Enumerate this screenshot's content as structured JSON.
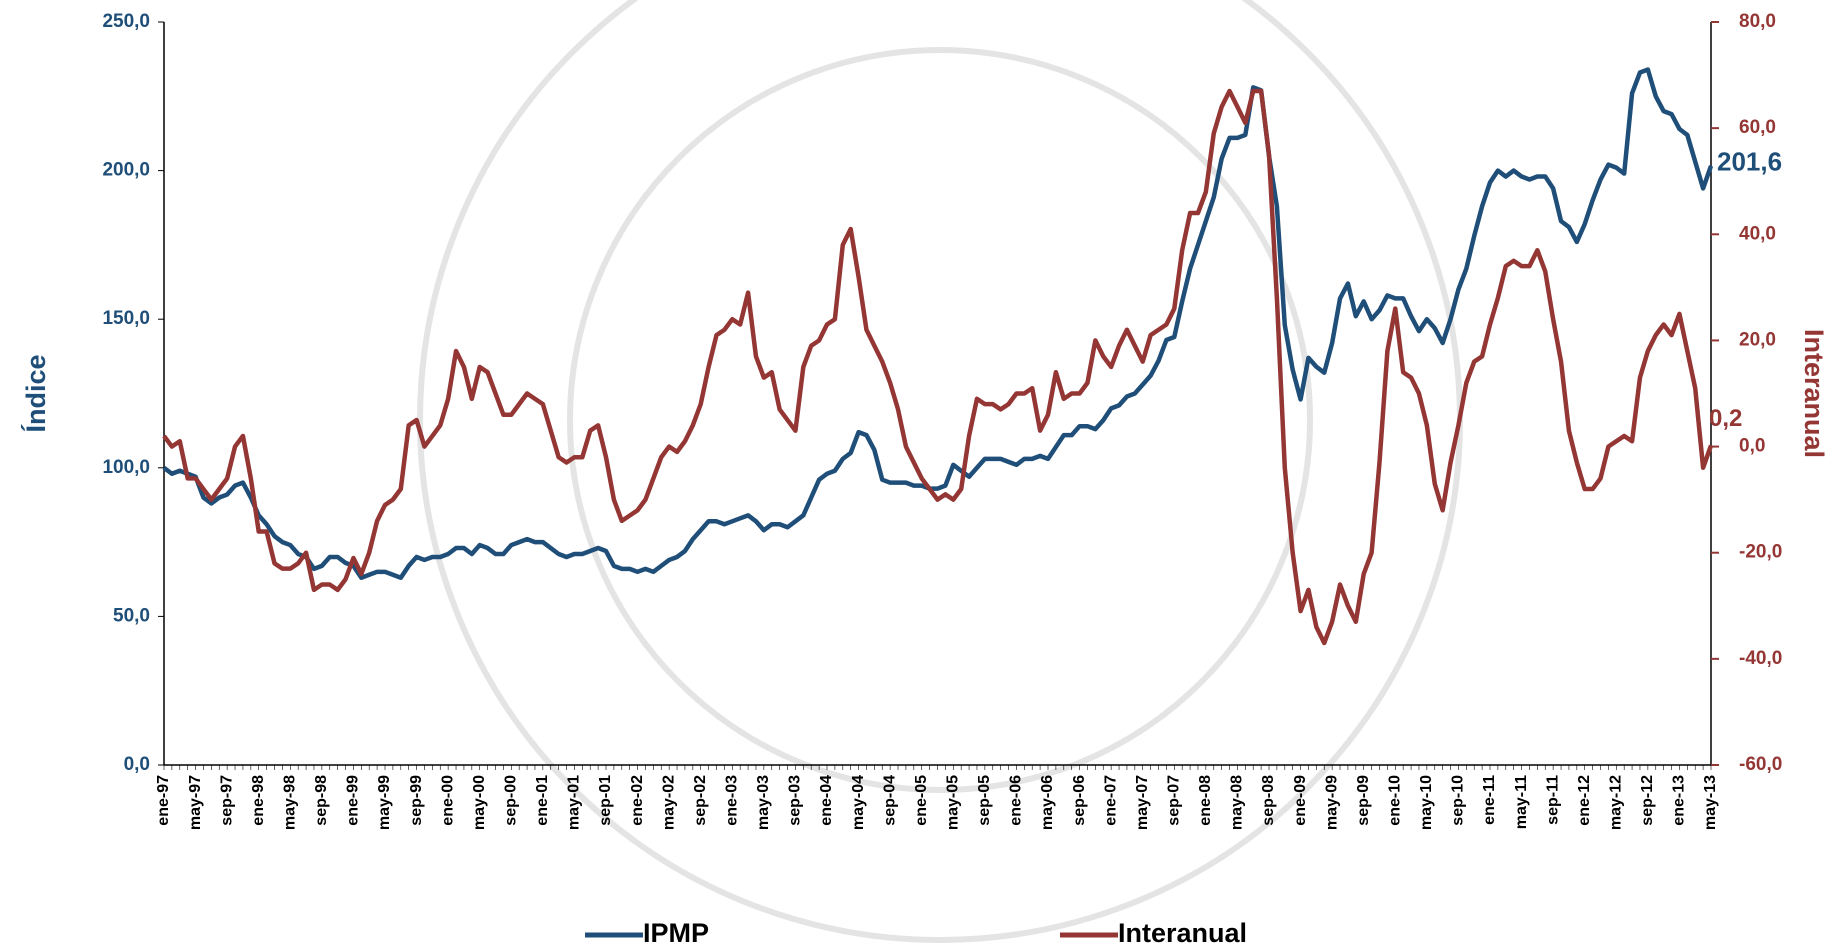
{
  "chart_data": {
    "type": "line",
    "categories": [
      "ene-97",
      null,
      null,
      null,
      "may-97",
      null,
      null,
      null,
      "sep-97",
      null,
      null,
      null,
      "ene-98",
      null,
      null,
      null,
      "may-98",
      null,
      null,
      null,
      "sep-98",
      null,
      null,
      null,
      "ene-99",
      null,
      null,
      null,
      "may-99",
      null,
      null,
      null,
      "sep-99",
      null,
      null,
      null,
      "ene-00",
      null,
      null,
      null,
      "may-00",
      null,
      null,
      null,
      "sep-00",
      null,
      null,
      null,
      "ene-01",
      null,
      null,
      null,
      "may-01",
      null,
      null,
      null,
      "sep-01",
      null,
      null,
      null,
      "ene-02",
      null,
      null,
      null,
      "may-02",
      null,
      null,
      null,
      "sep-02",
      null,
      null,
      null,
      "ene-03",
      null,
      null,
      null,
      "may-03",
      null,
      null,
      null,
      "sep-03",
      null,
      null,
      null,
      "ene-04",
      null,
      null,
      null,
      "may-04",
      null,
      null,
      null,
      "sep-04",
      null,
      null,
      null,
      "ene-05",
      null,
      null,
      null,
      "may-05",
      null,
      null,
      null,
      "sep-05",
      null,
      null,
      null,
      "ene-06",
      null,
      null,
      null,
      "may-06",
      null,
      null,
      null,
      "sep-06",
      null,
      null,
      null,
      "ene-07",
      null,
      null,
      null,
      "may-07",
      null,
      null,
      null,
      "sep-07",
      null,
      null,
      null,
      "ene-08",
      null,
      null,
      null,
      "may-08",
      null,
      null,
      null,
      "sep-08",
      null,
      null,
      null,
      "ene-09",
      null,
      null,
      null,
      "may-09",
      null,
      null,
      null,
      "sep-09",
      null,
      null,
      null,
      "ene-10",
      null,
      null,
      null,
      "may-10",
      null,
      null,
      null,
      "sep-10",
      null,
      null,
      null,
      "ene-11",
      null,
      null,
      null,
      "may-11",
      null,
      null,
      null,
      "sep-11",
      null,
      null,
      null,
      "ene-12",
      null,
      null,
      null,
      "may-12",
      null,
      null,
      null,
      "sep-12",
      null,
      null,
      null,
      "ene-13",
      null,
      null,
      null,
      "may-13"
    ],
    "series": [
      {
        "name": "IPMP",
        "color": "#1f4e79",
        "axis": "y",
        "values": [
          100,
          98,
          99,
          98,
          97,
          90,
          88,
          90,
          91,
          94,
          95,
          90,
          84,
          81,
          77,
          75,
          74,
          71,
          70,
          66,
          67,
          70,
          70,
          68,
          67,
          63,
          64,
          65,
          65,
          64,
          63,
          67,
          70,
          69,
          70,
          70,
          71,
          73,
          73,
          71,
          74,
          73,
          71,
          71,
          74,
          75,
          76,
          75,
          75,
          73,
          71,
          70,
          71,
          71,
          72,
          73,
          72,
          67,
          66,
          66,
          65,
          66,
          65,
          67,
          69,
          70,
          72,
          76,
          79,
          82,
          82,
          81,
          82,
          83,
          84,
          82,
          79,
          81,
          81,
          80,
          82,
          84,
          90,
          96,
          98,
          99,
          103,
          105,
          112,
          111,
          106,
          96,
          95,
          95,
          95,
          94,
          94,
          93,
          93,
          94,
          101,
          99,
          97,
          100,
          103,
          103,
          103,
          102,
          101,
          103,
          103,
          104,
          103,
          107,
          111,
          111,
          114,
          114,
          113,
          116,
          120,
          121,
          124,
          125,
          128,
          131,
          136,
          143,
          144,
          156,
          167,
          175,
          183,
          191,
          204,
          211,
          211,
          212,
          228,
          227,
          205,
          188,
          148,
          133,
          123,
          137,
          134,
          132,
          142,
          157,
          162,
          151,
          156,
          150,
          153,
          158,
          157,
          157,
          151,
          146,
          150,
          147,
          142,
          150,
          160,
          167,
          178,
          188,
          196,
          200,
          198,
          200,
          198,
          197,
          198,
          198,
          194,
          183,
          181,
          176,
          182,
          190,
          197,
          202,
          201,
          199,
          226,
          233,
          234,
          225,
          220,
          219,
          214,
          212,
          203,
          194,
          201.6
        ],
        "value_labels": [
          null,
          null,
          null,
          null,
          null,
          null,
          null,
          null,
          null,
          null,
          null,
          null,
          null,
          null,
          null,
          null,
          null,
          null,
          null,
          null,
          null,
          null,
          null,
          null,
          null,
          null,
          null,
          null,
          null,
          null,
          null,
          null,
          null,
          null,
          null,
          null,
          null,
          null,
          null,
          null,
          null,
          null,
          null,
          null,
          null,
          null,
          null,
          null,
          null,
          null,
          null,
          null,
          null,
          null,
          null,
          null,
          null,
          null,
          null,
          null,
          null,
          null,
          null,
          null,
          null,
          null,
          null,
          null,
          null,
          null,
          null,
          null,
          null,
          null,
          null,
          null,
          null,
          null,
          null,
          null,
          null,
          null,
          null,
          null,
          null,
          null,
          null,
          null,
          null,
          null,
          null,
          null,
          null,
          null,
          null,
          null,
          null,
          null,
          null,
          null,
          null,
          null,
          null,
          null,
          null,
          null,
          null,
          null,
          null,
          null,
          null,
          null,
          null,
          null,
          null,
          null,
          null,
          null,
          null,
          null,
          null,
          null,
          null,
          null,
          null,
          null,
          null,
          null,
          null,
          null,
          null,
          null,
          null,
          null,
          null,
          null,
          null,
          null,
          null,
          null,
          null,
          null,
          null,
          null,
          null,
          null,
          null,
          null,
          null,
          null,
          null,
          null,
          null,
          null,
          null,
          null,
          null,
          null,
          null,
          null,
          null,
          null,
          null,
          null,
          null,
          null,
          null,
          null,
          null,
          null,
          null,
          null,
          null,
          null,
          null,
          null,
          null,
          null,
          null,
          null,
          null,
          null,
          null,
          null,
          null,
          null,
          null,
          null,
          null,
          null,
          null,
          null,
          null,
          null,
          null,
          null,
          "201,6"
        ]
      },
      {
        "name": "Interanual",
        "color": "#943634",
        "axis": "y2",
        "values": [
          2,
          0,
          1,
          -6,
          -6,
          -8,
          -10,
          -8,
          -6,
          0,
          2,
          -6,
          -16,
          -16,
          -22,
          -23,
          -23,
          -22,
          -20,
          -27,
          -26,
          -26,
          -27,
          -25,
          -21,
          -24,
          -20,
          -14,
          -11,
          -10,
          -8,
          4,
          5,
          0,
          2,
          4,
          9,
          18,
          15,
          9,
          15,
          14,
          10,
          6,
          6,
          8,
          10,
          9,
          8,
          3,
          -2,
          -3,
          -2,
          -2,
          3,
          4,
          -2,
          -10,
          -14,
          -13,
          -12,
          -10,
          -6,
          -2,
          0,
          -1,
          1,
          4,
          8,
          15,
          21,
          22,
          24,
          23,
          29,
          17,
          13,
          14,
          7,
          5,
          3,
          15,
          19,
          20,
          23,
          24,
          38,
          41,
          32,
          22,
          19,
          16,
          12,
          7,
          0,
          -3,
          -6,
          -8,
          -10,
          -9,
          -10,
          -8,
          2,
          9,
          8,
          8,
          7,
          8,
          10,
          10,
          11,
          3,
          6,
          14,
          9,
          10,
          10,
          12,
          20,
          17,
          15,
          19,
          22,
          19,
          16,
          21,
          22,
          23,
          26,
          37,
          44,
          44,
          48,
          59,
          64,
          67,
          64,
          61,
          67,
          67,
          55,
          28,
          -4,
          -20,
          -31,
          -27,
          -34,
          -37,
          -33,
          -26,
          -30,
          -33,
          -24,
          -20,
          -3,
          18,
          26,
          14,
          13,
          10,
          4,
          -7,
          -12,
          -3,
          4,
          12,
          16,
          17,
          23,
          28,
          34,
          35,
          34,
          34,
          37,
          33,
          24,
          16,
          3,
          -3,
          -8,
          -8,
          -6,
          0,
          1,
          2,
          1,
          13,
          18,
          21,
          23,
          21,
          25,
          18,
          11,
          -4,
          0.2
        ],
        "value_labels": [
          null,
          null,
          null,
          null,
          null,
          null,
          null,
          null,
          null,
          null,
          null,
          null,
          null,
          null,
          null,
          null,
          null,
          null,
          null,
          null,
          null,
          null,
          null,
          null,
          null,
          null,
          null,
          null,
          null,
          null,
          null,
          null,
          null,
          null,
          null,
          null,
          null,
          null,
          null,
          null,
          null,
          null,
          null,
          null,
          null,
          null,
          null,
          null,
          null,
          null,
          null,
          null,
          null,
          null,
          null,
          null,
          null,
          null,
          null,
          null,
          null,
          null,
          null,
          null,
          null,
          null,
          null,
          null,
          null,
          null,
          null,
          null,
          null,
          null,
          null,
          null,
          null,
          null,
          null,
          null,
          null,
          null,
          null,
          null,
          null,
          null,
          null,
          null,
          null,
          null,
          null,
          null,
          null,
          null,
          null,
          null,
          null,
          null,
          null,
          null,
          null,
          null,
          null,
          null,
          null,
          null,
          null,
          null,
          null,
          null,
          null,
          null,
          null,
          null,
          null,
          null,
          null,
          null,
          null,
          null,
          null,
          null,
          null,
          null,
          null,
          null,
          null,
          null,
          null,
          null,
          null,
          null,
          null,
          null,
          null,
          null,
          null,
          null,
          null,
          null,
          null,
          null,
          null,
          null,
          null,
          null,
          null,
          null,
          null,
          null,
          null,
          null,
          null,
          null,
          null,
          null,
          null,
          null,
          null,
          null,
          null,
          null,
          null,
          null,
          null,
          null,
          null,
          null,
          null,
          null,
          null,
          null,
          null,
          null,
          null,
          null,
          null,
          null,
          null,
          null,
          null,
          null,
          null,
          null,
          null,
          null,
          null,
          null,
          null,
          null,
          null,
          null,
          null,
          null,
          null,
          null,
          "0,2"
        ]
      }
    ],
    "y_label": "Índice",
    "y2_label": "Interanual",
    "ylim": [
      0,
      250
    ],
    "yticks": [
      {
        "value": 0,
        "label": "0,0"
      },
      {
        "value": 50,
        "label": "50,0"
      },
      {
        "value": 100,
        "label": "100,0"
      },
      {
        "value": 150,
        "label": "150,0"
      },
      {
        "value": 200,
        "label": "200,0"
      },
      {
        "value": 250,
        "label": "250,0"
      }
    ],
    "y2lim": [
      -60,
      80
    ],
    "y2ticks": [
      {
        "value": -60,
        "label": "-60,0"
      },
      {
        "value": -40,
        "label": "-40,0"
      },
      {
        "value": -20,
        "label": "-20,0"
      },
      {
        "value": 0,
        "label": "0,0"
      },
      {
        "value": 20,
        "label": "20,0"
      },
      {
        "value": 40,
        "label": "40,0"
      },
      {
        "value": 60,
        "label": "60,0"
      },
      {
        "value": 80,
        "label": "80,0"
      }
    ],
    "grid": false,
    "legend": "bottom"
  }
}
